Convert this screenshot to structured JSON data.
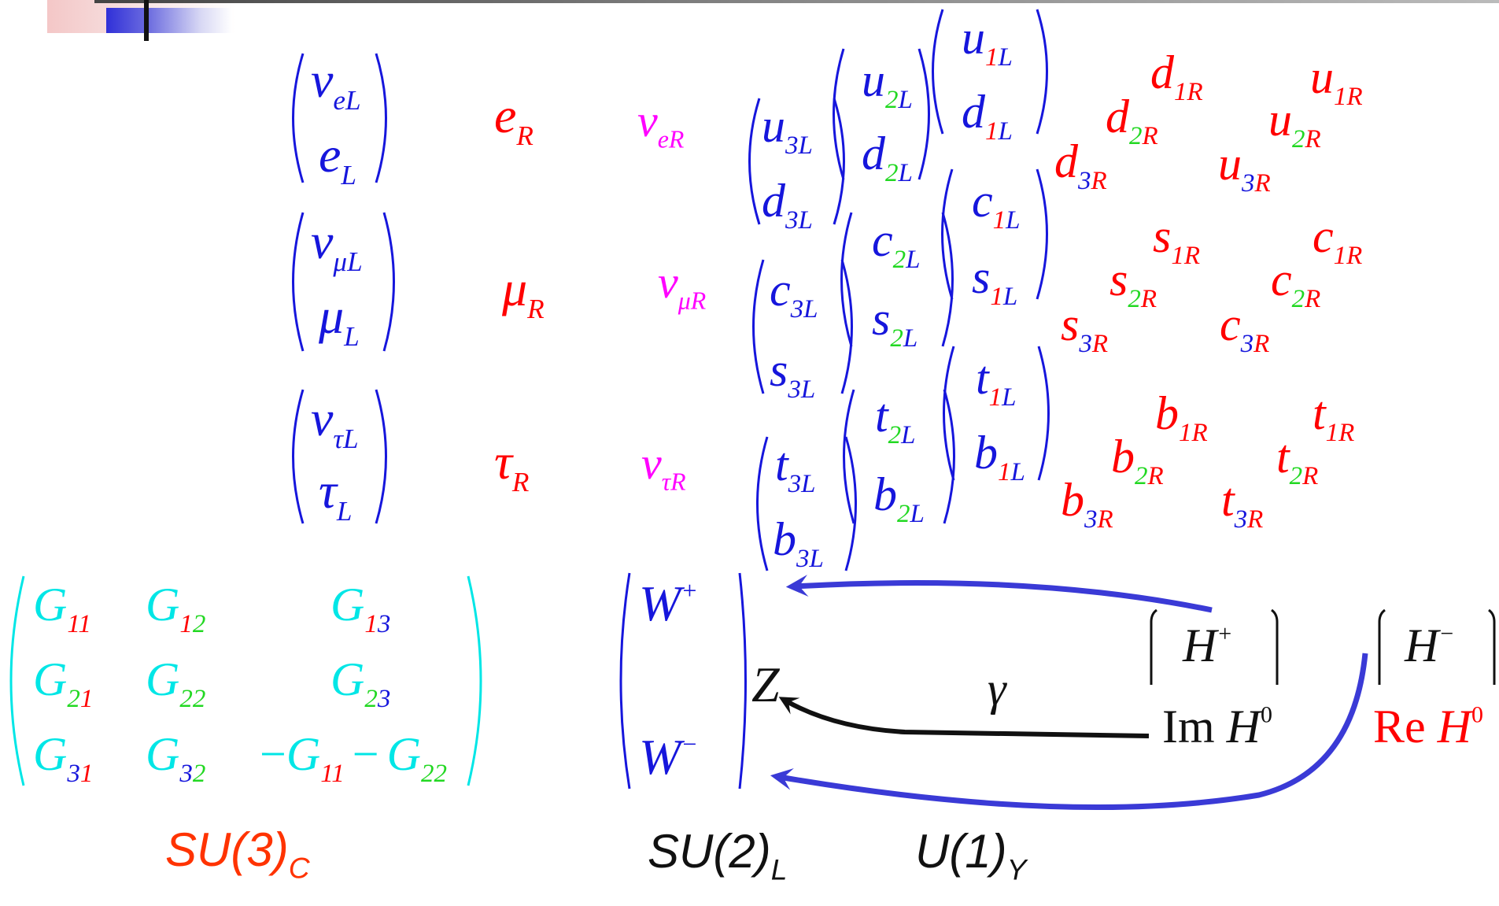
{
  "colors": {
    "doublet": "#1616dc",
    "singlet": "#ff0000",
    "neutrino_r": "#ff00ff",
    "gluon": "#00e6e6",
    "green_index": "#22d822",
    "higgs": "#111111",
    "arrow_blue": "#3a3ad6",
    "su3_label": "#ff3300"
  },
  "symbols": {
    "nu": "ν",
    "e": "e",
    "mu": "μ",
    "tau": "τ",
    "u": "u",
    "d": "d",
    "c": "c",
    "s": "s",
    "t": "t",
    "b": "b",
    "G": "G",
    "W": "W",
    "Z": "Z",
    "H": "H",
    "gamma": "γ",
    "plus": "+",
    "minus": "−",
    "zero": "0",
    "Im": "Im",
    "Re": "Re"
  },
  "indices": {
    "eL": "eL",
    "L": "L",
    "R": "R",
    "eR": "eR",
    "muL": "μL",
    "muR": "μR",
    "tauL": "τL",
    "tauR": "τR",
    "one": "1",
    "two": "2",
    "three": "3",
    "g11": "11",
    "g12": "12",
    "g13": "13",
    "g21": "21",
    "g22": "22",
    "g23": "23",
    "g31": "31",
    "g32": "32"
  },
  "labels": {
    "su3": "SU(3)",
    "su3_sub": "C",
    "su2": "SU(2)",
    "su2_sub": "L",
    "u1": "U(1)",
    "u1_sub": "Y"
  }
}
